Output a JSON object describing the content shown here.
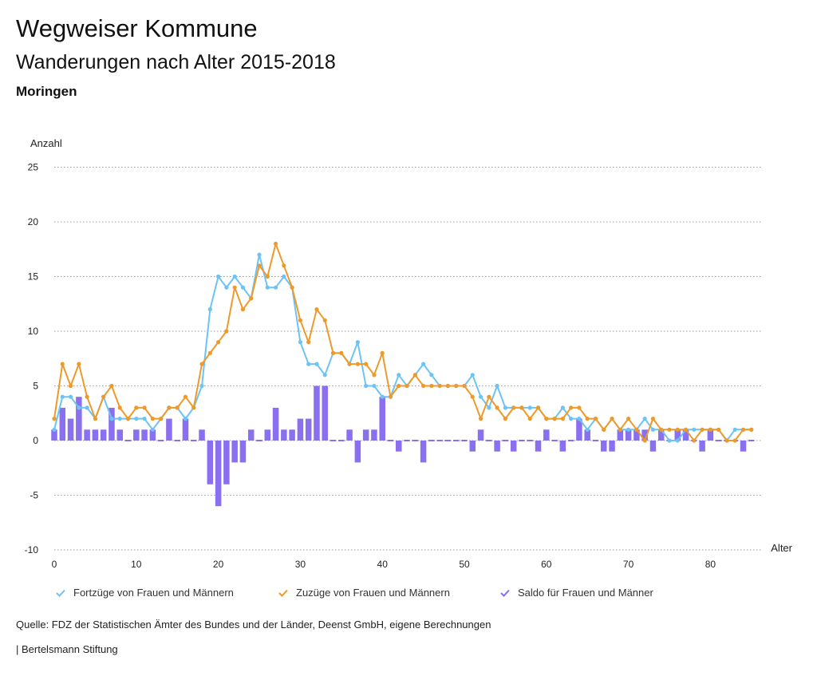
{
  "header": {
    "title": "Wegweiser Kommune",
    "subtitle": "Wanderungen nach Alter 2015-2018",
    "region": "Moringen"
  },
  "legend": {
    "items": [
      {
        "label": "Fortzüge von Frauen und Männern",
        "color": "#6ec3f5"
      },
      {
        "label": "Zuzüge von Frauen und Männern",
        "color": "#ee9a2a"
      },
      {
        "label": "Saldo für Frauen und Männer",
        "color": "#8a6ff0"
      }
    ]
  },
  "footer": {
    "source": "Quelle: FDZ der Statistischen Ämter des Bundes und der Länder, Deenst GmbH, eigene Berechnungen",
    "brand": "| Bertelsmann Stiftung"
  },
  "chart_data": {
    "type": "line",
    "title": "Wanderungen nach Alter 2015-2018",
    "ylabel": "Anzahl",
    "xlabel": "Alter",
    "ylim": [
      -10,
      25
    ],
    "xlim": [
      0,
      85
    ],
    "yticks": [
      25,
      20,
      15,
      10,
      5,
      0,
      -5,
      -10
    ],
    "xticks": [
      0,
      10,
      20,
      30,
      40,
      50,
      60,
      70,
      80
    ],
    "grid": true,
    "legend_position": "bottom",
    "x": [
      0,
      1,
      2,
      3,
      4,
      5,
      6,
      7,
      8,
      9,
      10,
      11,
      12,
      13,
      14,
      15,
      16,
      17,
      18,
      19,
      20,
      21,
      22,
      23,
      24,
      25,
      26,
      27,
      28,
      29,
      30,
      31,
      32,
      33,
      34,
      35,
      36,
      37,
      38,
      39,
      40,
      41,
      42,
      43,
      44,
      45,
      46,
      47,
      48,
      49,
      50,
      51,
      52,
      53,
      54,
      55,
      56,
      57,
      58,
      59,
      60,
      61,
      62,
      63,
      64,
      65,
      66,
      67,
      68,
      69,
      70,
      71,
      72,
      73,
      74,
      75,
      76,
      77,
      78,
      79,
      80,
      81,
      82,
      83,
      84,
      85
    ],
    "series": [
      {
        "name": "Fortzüge von Frauen und Männern",
        "kind": "line",
        "color": "#6ec3f5",
        "values": [
          1,
          4,
          4,
          3,
          3,
          2,
          4,
          2,
          2,
          2,
          2,
          2,
          1,
          2,
          3,
          3,
          2,
          3,
          5,
          12,
          15,
          14,
          15,
          14,
          13,
          17,
          14,
          14,
          15,
          14,
          9,
          7,
          7,
          6,
          8,
          8,
          7,
          9,
          5,
          5,
          4,
          4,
          6,
          5,
          6,
          7,
          6,
          5,
          5,
          5,
          5,
          6,
          4,
          3,
          5,
          3,
          3,
          3,
          3,
          3,
          2,
          2,
          3,
          2,
          2,
          1,
          2,
          1,
          2,
          1,
          1,
          1,
          2,
          1,
          1,
          0,
          0,
          1,
          1,
          1,
          1,
          1,
          0,
          1,
          1,
          1
        ]
      },
      {
        "name": "Zuzüge von Frauen und Männern",
        "kind": "line",
        "color": "#ee9a2a",
        "values": [
          2,
          7,
          5,
          7,
          4,
          2,
          4,
          5,
          3,
          2,
          3,
          3,
          2,
          2,
          3,
          3,
          4,
          3,
          7,
          8,
          9,
          10,
          14,
          12,
          13,
          16,
          15,
          18,
          16,
          14,
          11,
          9,
          12,
          11,
          8,
          8,
          7,
          7,
          7,
          6,
          8,
          4,
          5,
          5,
          6,
          5,
          5,
          5,
          5,
          5,
          5,
          4,
          2,
          4,
          3,
          2,
          3,
          3,
          2,
          3,
          2,
          2,
          2,
          3,
          3,
          2,
          2,
          1,
          2,
          1,
          2,
          1,
          0,
          2,
          1,
          1,
          1,
          1,
          0,
          1,
          1,
          1,
          0,
          0,
          1,
          1
        ]
      },
      {
        "name": "Saldo für Frauen und Männer",
        "kind": "bar",
        "color": "#8a6ff0",
        "values": [
          1,
          3,
          2,
          4,
          1,
          1,
          1,
          3,
          1,
          0,
          1,
          1,
          1,
          0,
          2,
          0,
          2,
          0,
          1,
          -4,
          -6,
          -4,
          -2,
          -2,
          1,
          0,
          1,
          3,
          1,
          1,
          2,
          2,
          5,
          5,
          0,
          0,
          1,
          -2,
          1,
          1,
          4,
          0,
          -1,
          0,
          0,
          -2,
          0,
          0,
          0,
          0,
          0,
          -1,
          1,
          0,
          -1,
          0,
          -1,
          0,
          0,
          -1,
          1,
          0,
          -1,
          0,
          2,
          1,
          0,
          -1,
          -1,
          1,
          1,
          1,
          1,
          -1,
          1,
          0,
          1,
          1,
          0,
          -1,
          1,
          0,
          0,
          0,
          -1,
          0
        ]
      }
    ]
  }
}
